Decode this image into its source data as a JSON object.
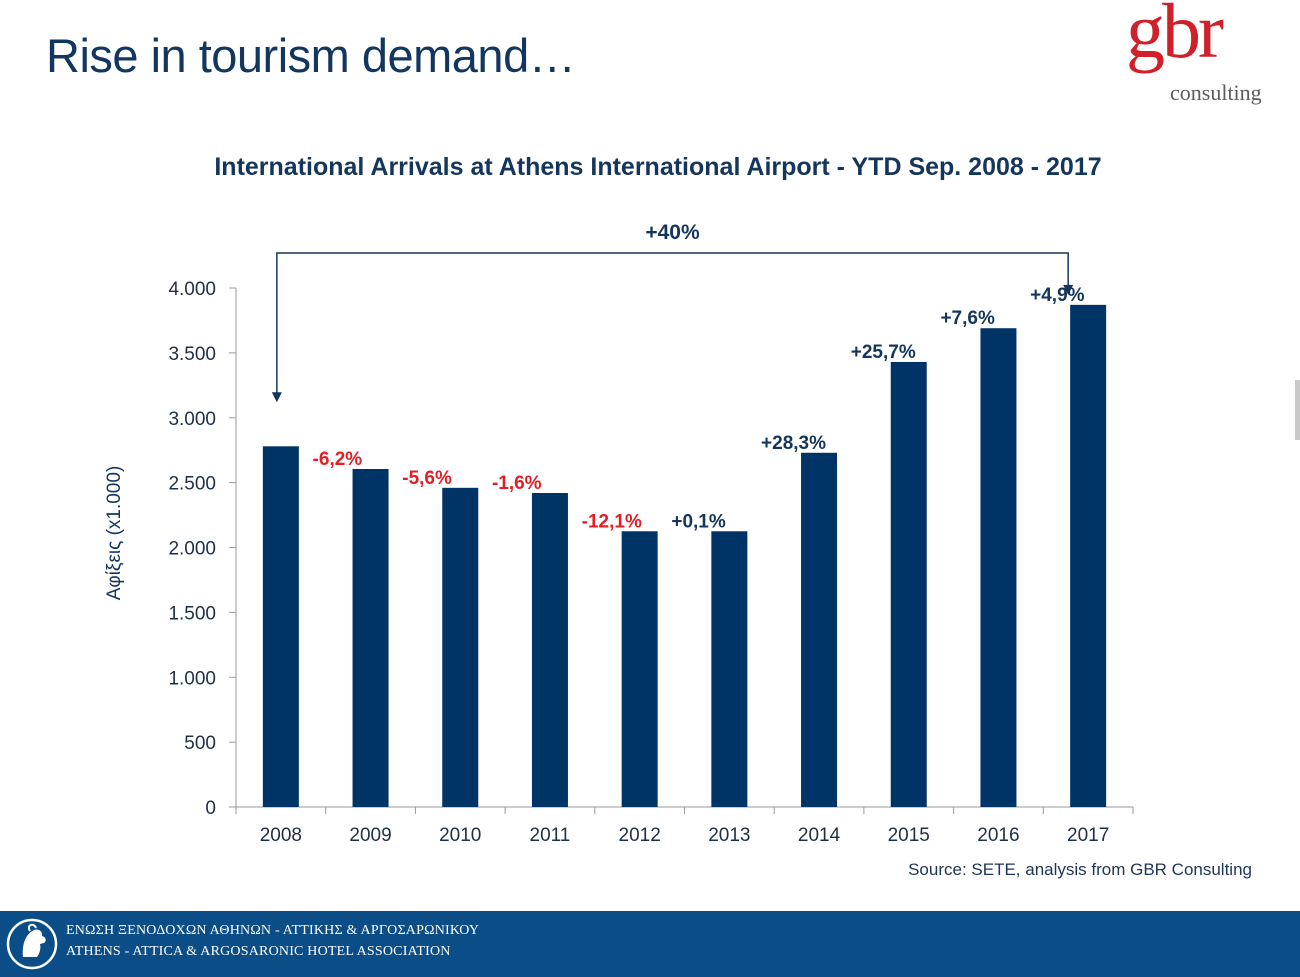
{
  "slide": {
    "title": "Rise in tourism demand…",
    "source": "Source: SETE, analysis from GBR Consulting"
  },
  "logo": {
    "main": "gbr",
    "sub": "consulting",
    "main_color": "#d0202a"
  },
  "footer": {
    "line1": "ΕΝΩΣΗ ΞΕΝΟΔΟΧΩΝ ΑΘΗΝΩΝ - ΑΤΤΙΚΗΣ & ΑΡΓΟΣΑΡΩΝΙΚΟΥ",
    "line2": "ATHENS - ATTICA & ARGOSARONIC HOTEL ASSOCIATION",
    "background": "#0b4d86"
  },
  "chart_data": {
    "type": "bar",
    "title": "International Arrivals at Athens International Airport - YTD Sep. 2008 - 2017",
    "ylabel": "Αφίξεις (x1.000)",
    "xlabel": "",
    "ylim": [
      0,
      4000
    ],
    "yticks": [
      0,
      500,
      1000,
      1500,
      2000,
      2500,
      3000,
      3500,
      4000
    ],
    "ytick_labels": [
      "0",
      "500",
      "1.000",
      "1.500",
      "2.000",
      "2.500",
      "3.000",
      "3.500",
      "4.000"
    ],
    "categories": [
      "2008",
      "2009",
      "2010",
      "2011",
      "2012",
      "2013",
      "2014",
      "2015",
      "2016",
      "2017"
    ],
    "values": [
      2780,
      2605,
      2460,
      2420,
      2125,
      2125,
      2730,
      3430,
      3690,
      3870
    ],
    "change_labels": [
      "",
      "-6,2%",
      "-5,6%",
      "-1,6%",
      "-12,1%",
      "+0,1%",
      "+28,3%",
      "+25,7%",
      "+7,6%",
      "+4,9%"
    ],
    "bar_color": "#003366",
    "negative_color": "#e31e24",
    "positive_color": "#15365c",
    "overall_change_label": "+40%",
    "grid": false,
    "legend": "none"
  }
}
